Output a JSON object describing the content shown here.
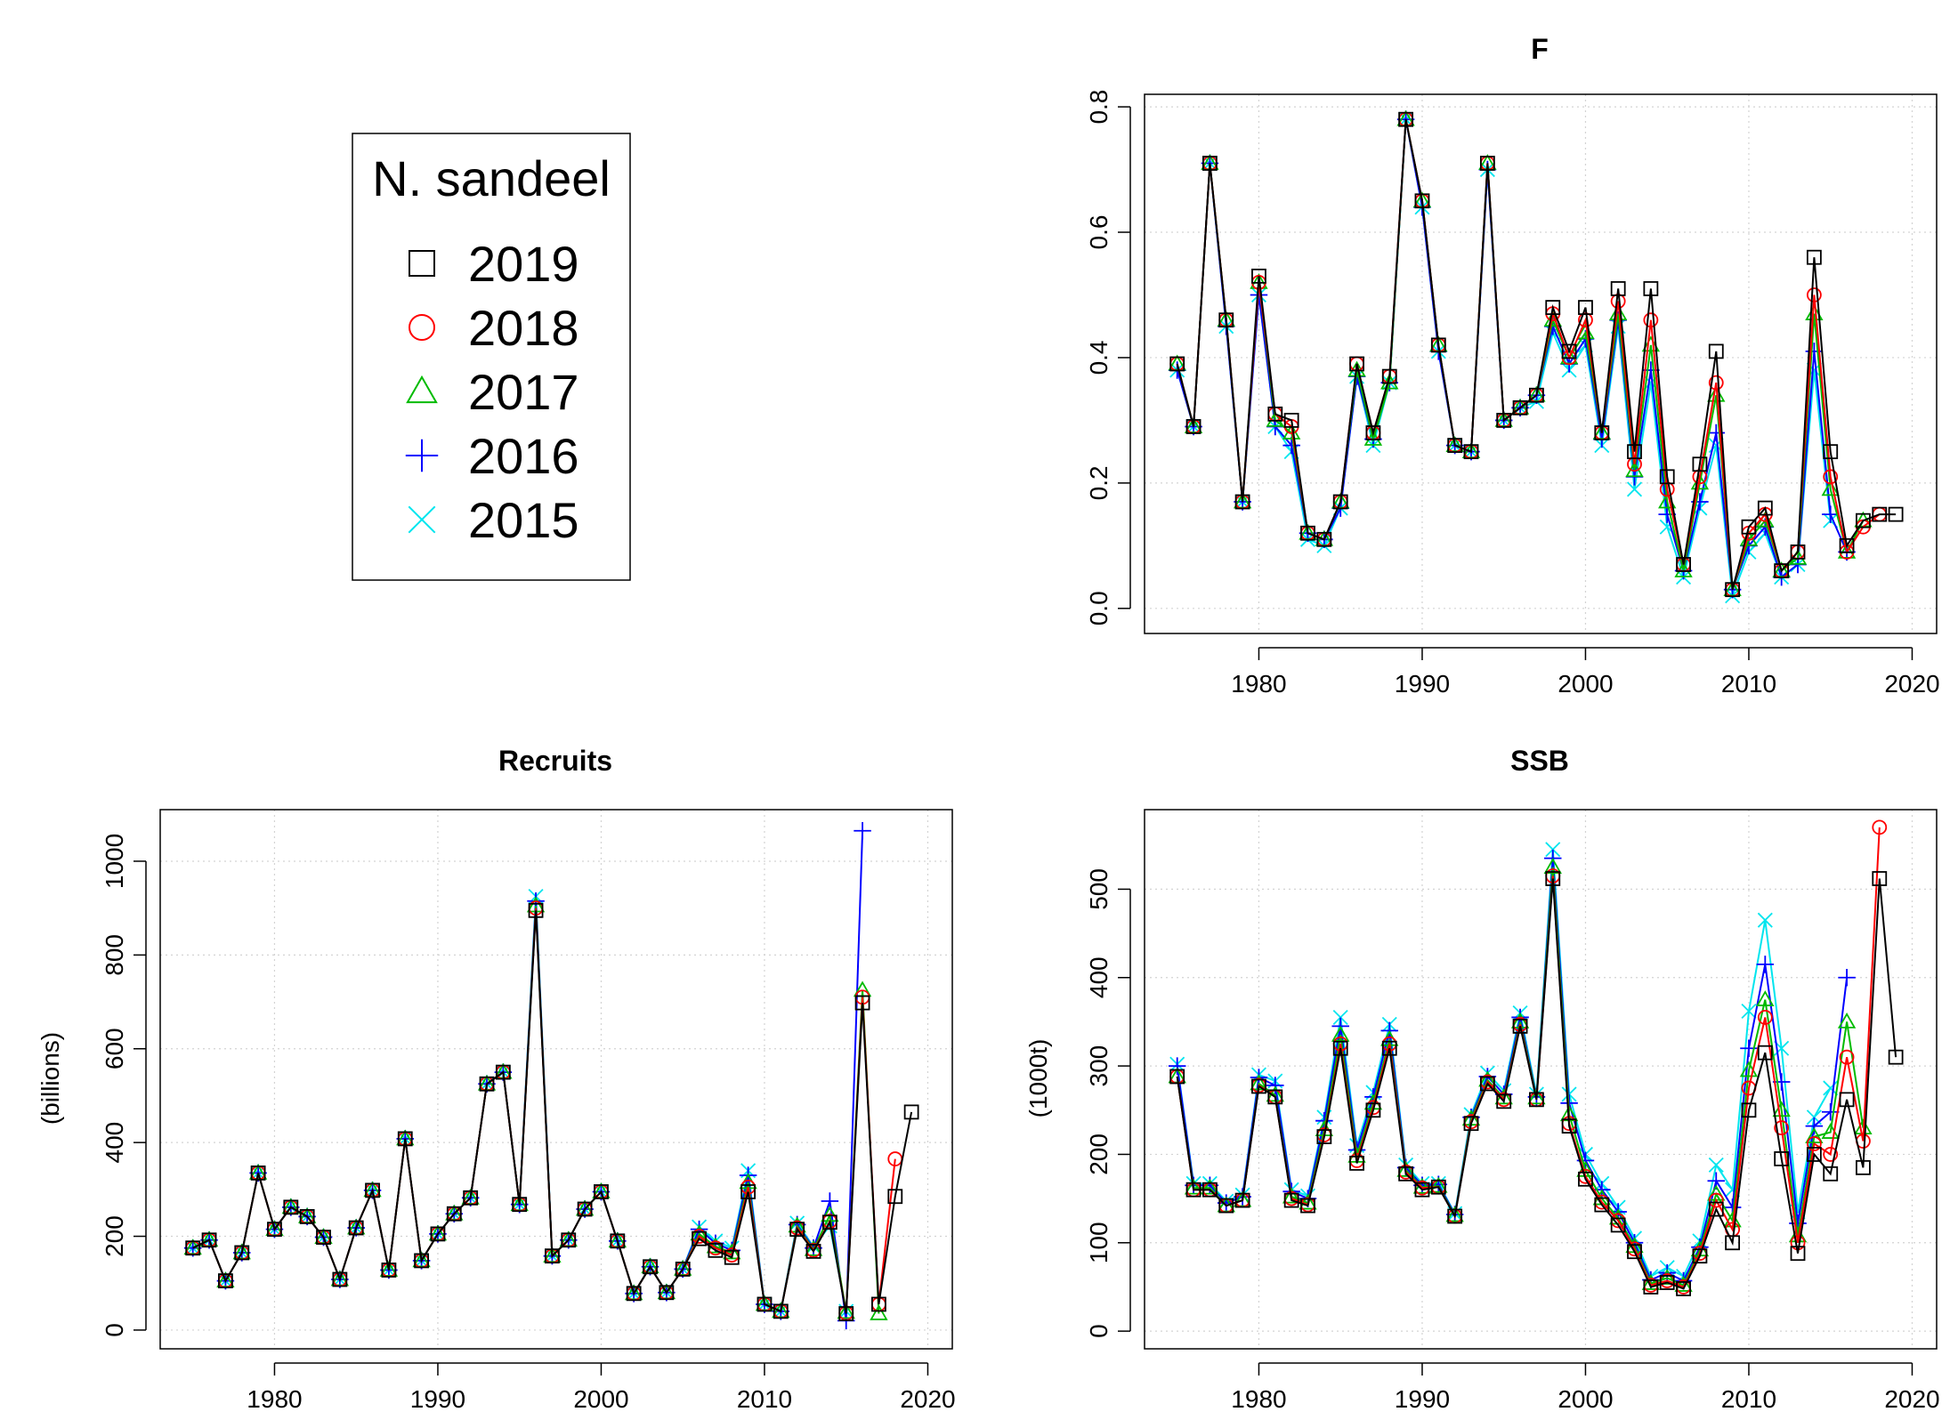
{
  "legend": {
    "title": "N. sandeel",
    "entries": [
      {
        "label": "2019",
        "symbol": "square",
        "color": "#000000"
      },
      {
        "label": "2018",
        "symbol": "circle",
        "color": "#ff0000"
      },
      {
        "label": "2017",
        "symbol": "triangle",
        "color": "#00bb00"
      },
      {
        "label": "2016",
        "symbol": "plus",
        "color": "#0000ff"
      },
      {
        "label": "2015",
        "symbol": "cross",
        "color": "#00e5ee"
      }
    ]
  },
  "chart_data": [
    {
      "id": "F",
      "type": "line",
      "title": "F",
      "xlabel": "",
      "ylabel": "",
      "xlim": [
        1973,
        2021.5
      ],
      "ylim": [
        -0.04,
        0.82
      ],
      "xticks": [
        1980,
        1990,
        2000,
        2010,
        2020
      ],
      "yticks": [
        0.0,
        0.2,
        0.4,
        0.6,
        0.8
      ],
      "ytick_labels": [
        "0.0",
        "0.2",
        "0.4",
        "0.6",
        "0.8"
      ],
      "grid": true,
      "series": [
        {
          "name": "2019",
          "color": "#000000",
          "symbol": "square",
          "x_start": 1975,
          "values": [
            0.39,
            0.29,
            0.71,
            0.46,
            0.17,
            0.53,
            0.31,
            0.3,
            0.12,
            0.11,
            0.17,
            0.39,
            0.28,
            0.37,
            0.78,
            0.65,
            0.42,
            0.26,
            0.25,
            0.71,
            0.3,
            0.32,
            0.34,
            0.48,
            0.41,
            0.48,
            0.28,
            0.51,
            0.25,
            0.51,
            0.21,
            0.07,
            0.23,
            0.41,
            0.03,
            0.13,
            0.16,
            0.06,
            0.09,
            0.56,
            0.25,
            0.1,
            0.14,
            0.15,
            0.15
          ]
        },
        {
          "name": "2018",
          "color": "#ff0000",
          "symbol": "circle",
          "x_start": 1975,
          "values": [
            0.39,
            0.29,
            0.71,
            0.46,
            0.17,
            0.52,
            0.31,
            0.29,
            0.12,
            0.11,
            0.17,
            0.39,
            0.28,
            0.37,
            0.78,
            0.65,
            0.42,
            0.26,
            0.25,
            0.71,
            0.3,
            0.32,
            0.34,
            0.47,
            0.4,
            0.46,
            0.28,
            0.49,
            0.23,
            0.46,
            0.19,
            0.07,
            0.21,
            0.36,
            0.03,
            0.12,
            0.15,
            0.06,
            0.09,
            0.5,
            0.21,
            0.09,
            0.13,
            0.15
          ]
        },
        {
          "name": "2017",
          "color": "#00bb00",
          "symbol": "triangle",
          "x_start": 1975,
          "values": [
            0.39,
            0.29,
            0.71,
            0.46,
            0.17,
            0.52,
            0.3,
            0.28,
            0.12,
            0.11,
            0.17,
            0.38,
            0.27,
            0.36,
            0.78,
            0.65,
            0.42,
            0.26,
            0.25,
            0.71,
            0.3,
            0.32,
            0.34,
            0.46,
            0.4,
            0.44,
            0.28,
            0.47,
            0.22,
            0.42,
            0.17,
            0.06,
            0.2,
            0.34,
            0.03,
            0.11,
            0.14,
            0.06,
            0.08,
            0.47,
            0.19,
            0.09,
            0.14
          ]
        },
        {
          "name": "2016",
          "color": "#0000ff",
          "symbol": "plus",
          "x_start": 1975,
          "values": [
            0.38,
            0.29,
            0.71,
            0.45,
            0.17,
            0.5,
            0.29,
            0.26,
            0.12,
            0.11,
            0.16,
            0.37,
            0.27,
            0.36,
            0.78,
            0.64,
            0.41,
            0.26,
            0.25,
            0.7,
            0.3,
            0.32,
            0.34,
            0.45,
            0.39,
            0.43,
            0.27,
            0.46,
            0.21,
            0.38,
            0.15,
            0.06,
            0.17,
            0.28,
            0.03,
            0.1,
            0.13,
            0.05,
            0.07,
            0.41,
            0.15,
            0.09
          ]
        },
        {
          "name": "2015",
          "color": "#00e5ee",
          "symbol": "cross",
          "x_start": 1975,
          "values": [
            0.38,
            0.29,
            0.71,
            0.45,
            0.17,
            0.5,
            0.29,
            0.25,
            0.11,
            0.1,
            0.16,
            0.37,
            0.26,
            0.36,
            0.78,
            0.64,
            0.41,
            0.26,
            0.25,
            0.7,
            0.3,
            0.32,
            0.33,
            0.44,
            0.38,
            0.42,
            0.26,
            0.45,
            0.19,
            0.36,
            0.13,
            0.05,
            0.16,
            0.26,
            0.02,
            0.09,
            0.12,
            0.05,
            0.07,
            0.38,
            0.14
          ]
        }
      ]
    },
    {
      "id": "Recruits",
      "type": "line",
      "title": "Recruits",
      "xlabel": "",
      "ylabel": "(billions)",
      "xlim": [
        1973,
        2021.5
      ],
      "ylim": [
        -40,
        1110
      ],
      "xticks": [
        1980,
        1990,
        2000,
        2010,
        2020
      ],
      "yticks": [
        0,
        200,
        400,
        600,
        800,
        1000
      ],
      "ytick_labels": [
        "0",
        "200",
        "400",
        "600",
        "800",
        "1000"
      ],
      "grid": true,
      "series": [
        {
          "name": "2019",
          "color": "#000000",
          "symbol": "square",
          "x_start": 1975,
          "values": [
            175,
            192,
            105,
            165,
            335,
            215,
            262,
            242,
            198,
            108,
            218,
            298,
            128,
            408,
            148,
            205,
            248,
            282,
            525,
            550,
            268,
            895,
            158,
            192,
            258,
            295,
            190,
            78,
            135,
            80,
            130,
            195,
            170,
            155,
            295,
            55,
            40,
            215,
            168,
            230,
            35,
            698,
            55,
            285,
            465
          ]
        },
        {
          "name": "2018",
          "color": "#ff0000",
          "symbol": "circle",
          "x_start": 1975,
          "values": [
            175,
            192,
            105,
            165,
            335,
            215,
            262,
            242,
            198,
            108,
            218,
            298,
            128,
            408,
            148,
            205,
            248,
            282,
            525,
            550,
            268,
            900,
            158,
            192,
            258,
            295,
            190,
            78,
            135,
            80,
            130,
            200,
            175,
            160,
            305,
            55,
            40,
            218,
            170,
            232,
            36,
            710,
            55,
            365
          ]
        },
        {
          "name": "2017",
          "color": "#00bb00",
          "symbol": "triangle",
          "x_start": 1975,
          "values": [
            175,
            192,
            105,
            165,
            335,
            215,
            262,
            242,
            198,
            108,
            218,
            298,
            128,
            408,
            148,
            205,
            248,
            282,
            525,
            550,
            268,
            905,
            158,
            192,
            258,
            295,
            190,
            78,
            135,
            80,
            130,
            205,
            178,
            165,
            315,
            55,
            40,
            222,
            172,
            245,
            38,
            725,
            35
          ]
        },
        {
          "name": "2016",
          "color": "#0000ff",
          "symbol": "plus",
          "x_start": 1975,
          "values": [
            175,
            192,
            105,
            165,
            335,
            215,
            262,
            242,
            198,
            108,
            218,
            298,
            128,
            408,
            148,
            205,
            248,
            282,
            525,
            550,
            268,
            915,
            158,
            192,
            258,
            295,
            190,
            78,
            135,
            80,
            130,
            215,
            185,
            170,
            330,
            55,
            40,
            225,
            175,
            275,
            20,
            1065
          ]
        },
        {
          "name": "2015",
          "color": "#00e5ee",
          "symbol": "cross",
          "x_start": 1975,
          "values": [
            175,
            192,
            105,
            165,
            335,
            215,
            262,
            242,
            198,
            108,
            218,
            298,
            128,
            408,
            148,
            205,
            248,
            282,
            525,
            550,
            268,
            925,
            158,
            192,
            258,
            295,
            190,
            78,
            135,
            80,
            130,
            220,
            190,
            175,
            340,
            55,
            40,
            228,
            178,
            222,
            40
          ]
        }
      ]
    },
    {
      "id": "SSB",
      "type": "line",
      "title": "SSB",
      "xlabel": "",
      "ylabel": "(1000t)",
      "xlim": [
        1973,
        2021.5
      ],
      "ylim": [
        -20,
        590
      ],
      "xticks": [
        1980,
        1990,
        2000,
        2010,
        2020
      ],
      "yticks": [
        0,
        100,
        200,
        300,
        400,
        500
      ],
      "ytick_labels": [
        "0",
        "100",
        "200",
        "300",
        "400",
        "500"
      ],
      "grid": true,
      "series": [
        {
          "name": "2019",
          "color": "#000000",
          "symbol": "square",
          "x_start": 1975,
          "values": [
            288,
            160,
            160,
            142,
            148,
            277,
            265,
            148,
            142,
            220,
            320,
            190,
            250,
            320,
            178,
            160,
            163,
            130,
            235,
            280,
            260,
            345,
            262,
            512,
            232,
            172,
            143,
            120,
            90,
            50,
            55,
            48,
            85,
            138,
            100,
            250,
            315,
            195,
            88,
            200,
            178,
            262,
            185,
            512,
            310
          ]
        },
        {
          "name": "2018",
          "color": "#ff0000",
          "symbol": "circle",
          "x_start": 1975,
          "values": [
            288,
            160,
            160,
            142,
            148,
            278,
            265,
            150,
            143,
            222,
            325,
            193,
            253,
            325,
            180,
            162,
            163,
            130,
            237,
            282,
            262,
            347,
            262,
            515,
            235,
            175,
            146,
            125,
            93,
            52,
            57,
            50,
            88,
            148,
            115,
            275,
            355,
            230,
            100,
            212,
            200,
            310,
            215,
            570
          ]
        },
        {
          "name": "2017",
          "color": "#00bb00",
          "symbol": "triangle",
          "x_start": 1975,
          "values": [
            288,
            162,
            162,
            142,
            148,
            280,
            267,
            152,
            145,
            228,
            335,
            198,
            258,
            330,
            182,
            163,
            164,
            131,
            240,
            284,
            264,
            350,
            264,
            525,
            245,
            182,
            150,
            128,
            96,
            54,
            60,
            52,
            92,
            155,
            125,
            295,
            375,
            250,
            108,
            220,
            225,
            350,
            230
          ]
        },
        {
          "name": "2016",
          "color": "#0000ff",
          "symbol": "plus",
          "x_start": 1975,
          "values": [
            300,
            165,
            165,
            145,
            152,
            287,
            278,
            158,
            150,
            238,
            345,
            205,
            265,
            340,
            185,
            165,
            166,
            132,
            242,
            288,
            268,
            355,
            265,
            535,
            258,
            193,
            160,
            135,
            100,
            58,
            66,
            57,
            95,
            170,
            140,
            320,
            415,
            282,
            122,
            232,
            248,
            400
          ]
        },
        {
          "name": "2015",
          "color": "#00e5ee",
          "symbol": "cross",
          "x_start": 1975,
          "values": [
            302,
            167,
            167,
            147,
            154,
            290,
            283,
            160,
            153,
            242,
            355,
            210,
            270,
            347,
            188,
            167,
            167,
            133,
            245,
            292,
            272,
            360,
            268,
            545,
            268,
            200,
            167,
            140,
            105,
            62,
            72,
            62,
            102,
            188,
            160,
            362,
            465,
            320,
            135,
            242,
            275
          ]
        }
      ]
    }
  ]
}
